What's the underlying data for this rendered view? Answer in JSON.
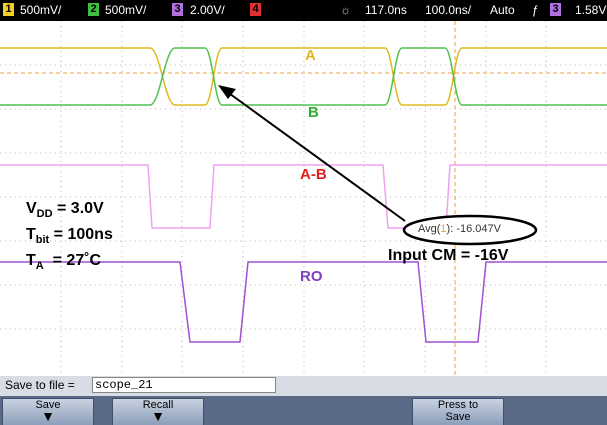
{
  "status_bar": {
    "channels": [
      {
        "number": "1",
        "scale": "500mV/"
      },
      {
        "number": "2",
        "scale": "500mV/"
      },
      {
        "number": "3",
        "scale": "2.00V/"
      },
      {
        "number": "4"
      }
    ],
    "delay": "117.0ns",
    "timebase": "100.0ns/",
    "trigger_mode": "Auto",
    "trigger_source": "3",
    "trigger_level": "1.58V"
  },
  "traces": {
    "a": "A",
    "b": "B",
    "a_minus_b": "A-B",
    "ro": "RO"
  },
  "conditions": [
    {
      "main": "V",
      "sub": "DD",
      "rest": " = 3.0V"
    },
    {
      "main": "T",
      "sub": "bit",
      "rest": " = 100ns"
    },
    {
      "main": "T",
      "sub": "A",
      "rest": "  = 27˚C"
    }
  ],
  "measurement": {
    "prefix": "Avg(",
    "channel": "1",
    "value": "): -16.047V"
  },
  "annotation": "Input CM = -16V",
  "save_row": {
    "label": "Save to file =",
    "filename": "scope_21"
  },
  "softkeys": [
    {
      "label": "Save"
    },
    {
      "label": "Recall"
    },
    {
      "label": "Press to",
      "label2": "Save"
    }
  ]
}
